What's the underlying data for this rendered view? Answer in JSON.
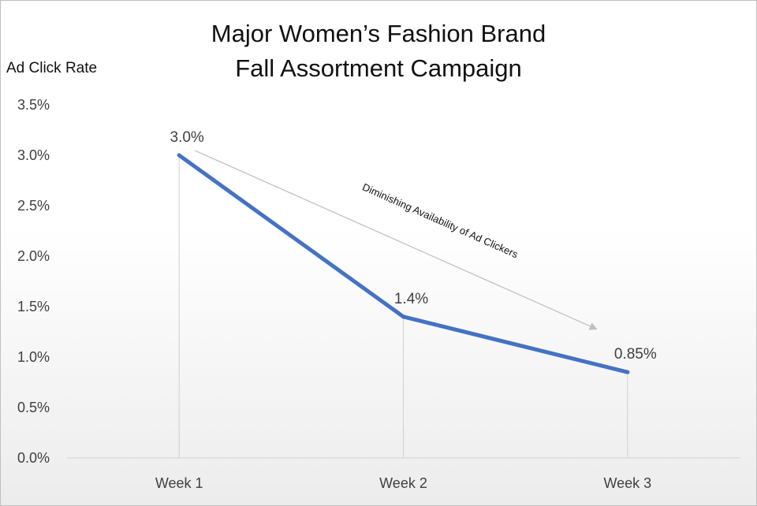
{
  "chart_data": {
    "type": "line",
    "title": [
      "Major Women’s Fashion Brand",
      "Fall Assortment Campaign"
    ],
    "ylabel": "Ad Click Rate",
    "xlabel": "",
    "categories": [
      "Week 1",
      "Week 2",
      "Week 3"
    ],
    "series": [
      {
        "values": [
          0.03,
          0.014,
          0.0085
        ],
        "data_labels": [
          "3.0%",
          "1.4%",
          "0.85%"
        ],
        "color": "#4472c4"
      }
    ],
    "ylim": [
      0,
      0.035
    ],
    "y_ticks": [
      0,
      0.005,
      0.01,
      0.015,
      0.02,
      0.025,
      0.03,
      0.035
    ],
    "y_tick_labels": [
      "0.0%",
      "0.5%",
      "1.0%",
      "1.5%",
      "2.0%",
      "2.5%",
      "3.0%",
      "3.5%"
    ],
    "grid": false,
    "drop_lines": true,
    "annotation": {
      "text": "Diminishing Availability of Ad Clickers",
      "arrow_from_category": "Week 1",
      "arrow_to_category": "Week 3"
    }
  }
}
